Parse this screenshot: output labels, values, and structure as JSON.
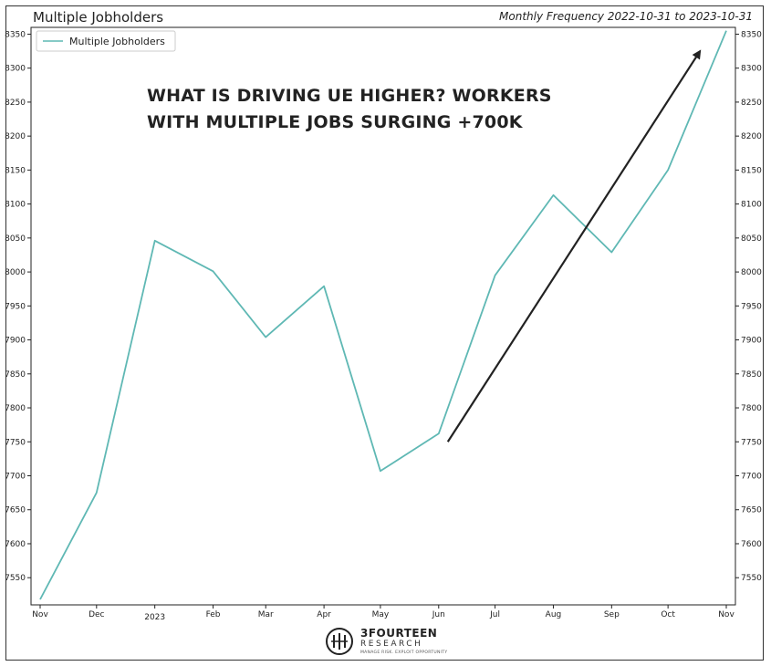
{
  "chart_data": {
    "type": "line",
    "title": "Multiple Jobholders",
    "subtitle": "Monthly Frequency 2022-10-31 to 2023-10-31",
    "x": [
      "2022-10-31",
      "2022-11-30",
      "2022-12-31",
      "2023-01-31",
      "2023-02-28",
      "2023-03-31",
      "2023-04-30",
      "2023-05-31",
      "2023-06-30",
      "2023-07-31",
      "2023-08-31",
      "2023-09-30",
      "2023-10-31"
    ],
    "x_tick_labels": [
      "Nov",
      "Dec",
      "2023",
      "Feb",
      "Mar",
      "Apr",
      "May",
      "Jun",
      "Jul",
      "Aug",
      "Sep",
      "Oct",
      "Nov"
    ],
    "series": [
      {
        "name": "Multiple Jobholders",
        "color": "#5fb8b4",
        "values": [
          7518,
          7675,
          8046,
          8001,
          7904,
          7979,
          7707,
          7762,
          7995,
          8113,
          8029,
          8150,
          8355
        ]
      }
    ],
    "yticks": [
      7550,
      7600,
      7650,
      7700,
      7750,
      7800,
      7850,
      7900,
      7950,
      8000,
      8050,
      8100,
      8150,
      8200,
      8250,
      8300,
      8350
    ],
    "ylim": [
      7510,
      8360
    ],
    "y_axis_both_sides": true,
    "grid": false,
    "legend_position": "top-left",
    "annotation": {
      "lines": [
        "WHAT IS DRIVING UE HIGHER? WORKERS",
        "WITH MULTIPLE JOBS SURGING +700K"
      ]
    },
    "arrow": {
      "from": {
        "x": "2023-05-31",
        "y": 7750
      },
      "to": {
        "x": "2023-10-17",
        "y": 8325
      },
      "color": "#222222"
    }
  },
  "logo": {
    "name": "3FOURTEEN",
    "sub": "RESEARCH",
    "tagline": "MANAGE RISK. EXPLOIT OPPORTUNITY"
  }
}
